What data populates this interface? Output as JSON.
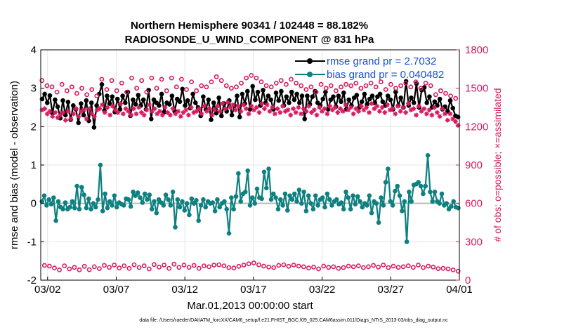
{
  "chart_data": {
    "type": "line",
    "title_line1": "Northern Hemisphere 90341 / 102448 = 88.182%",
    "title_line2": "RADIOSONDE_U_WIND_COMPONENT @ 831 hPa",
    "xlabel": "Mar.01,2013 00:00:00 start",
    "ylabel_left": "rmse and bias (model - observation)",
    "ylabel_right": "# of obs: o=possible; ×=assimilated",
    "footnote": "data file: /Users/raeder/DAI/ATM_forcXX/CAM6_setup/f.e21.FHIST_BGC.f09_025.CAM6assim.011/Diags_NTrS_2013-03/obs_diag_output.nc",
    "x_ticks": [
      "03/02",
      "03/07",
      "03/12",
      "03/17",
      "03/22",
      "03/27",
      "04/01"
    ],
    "x_tick_days": [
      1,
      6,
      11,
      16,
      21,
      26,
      31
    ],
    "xlim": [
      0.5,
      31
    ],
    "ylim_left": [
      -2,
      4
    ],
    "y_ticks_left": [
      "-2",
      "-1",
      "0",
      "1",
      "2",
      "3",
      "4"
    ],
    "ylim_right": [
      0,
      1800
    ],
    "y_ticks_right": [
      "0",
      "300",
      "600",
      "900",
      "1200",
      "1500",
      "1800"
    ],
    "series": [
      {
        "name": "rmse",
        "legend": "rmse grand pr = 2.7032",
        "color": "#000000",
        "axis": "left",
        "values": [
          2.72,
          2.85,
          2.62,
          2.81,
          2.35,
          2.7,
          2.52,
          2.22,
          2.68,
          2.3,
          2.64,
          2.18,
          2.55,
          2.45,
          2.1,
          2.6,
          2.3,
          2.68,
          2.15,
          2.62,
          1.98,
          2.55,
          2.85,
          3.1,
          2.42,
          2.8,
          2.6,
          2.78,
          2.38,
          2.72,
          2.45,
          2.8,
          2.62,
          2.9,
          2.28,
          2.7,
          2.58,
          2.82,
          2.55,
          2.7,
          2.45,
          2.95,
          2.2,
          2.7,
          2.62,
          2.55,
          2.85,
          2.38,
          2.62,
          2.58,
          2.8,
          2.4,
          2.72,
          2.65,
          2.98,
          2.55,
          2.68,
          2.48,
          2.85,
          2.62,
          2.5,
          2.28,
          2.78,
          2.45,
          2.7,
          2.18,
          2.62,
          2.35,
          2.75,
          2.28,
          2.6,
          2.4,
          2.68,
          2.3,
          2.55,
          2.8,
          2.25,
          2.85,
          2.6,
          2.92,
          2.45,
          3.05,
          2.7,
          2.9,
          2.55,
          2.95,
          2.62,
          2.8,
          2.7,
          2.45,
          2.88,
          2.68,
          2.92,
          2.55,
          2.78,
          2.62,
          2.9,
          2.7,
          2.85,
          2.62,
          2.8,
          2.2,
          2.8,
          2.58,
          2.78,
          2.92,
          2.62,
          2.55,
          2.72,
          2.9,
          2.45,
          2.7,
          2.78,
          2.52,
          2.8,
          2.65,
          2.88,
          2.45,
          2.7,
          2.55,
          2.75,
          2.82,
          2.5,
          2.65,
          2.85,
          2.58,
          2.72,
          2.8,
          2.62,
          2.78,
          2.85,
          2.65,
          2.55,
          2.8,
          2.7,
          2.45,
          2.9,
          2.55,
          2.75,
          2.5,
          3.18,
          2.55,
          2.75,
          2.62,
          3.12,
          2.5,
          2.95,
          3.02,
          2.62,
          2.78,
          2.5,
          2.65,
          2.55,
          2.72,
          2.45,
          2.52,
          2.4,
          2.68,
          2.48,
          2.28,
          2.25
        ]
      },
      {
        "name": "bias",
        "legend": "bias grand pr = 0.040482",
        "color": "#0e8080",
        "axis": "left",
        "values": [
          0.05,
          0.2,
          -0.05,
          0.1,
          -0.02,
          0.15,
          -0.45,
          0.05,
          -0.1,
          -0.15,
          0.02,
          -0.15,
          -0.1,
          0.05,
          -0.12,
          0.45,
          -0.15,
          0.42,
          0.22,
          -0.12,
          0.12,
          -0.15,
          0.0,
          -0.1,
          0.1,
          1.0,
          -0.2,
          0.25,
          -0.12,
          0.05,
          -0.05,
          0.2,
          -0.1,
          0.02,
          -0.02,
          -0.05,
          0.12,
          0.1,
          -0.08,
          0.3,
          0.2,
          0.28,
          0.15,
          0.02,
          0.25,
          0.1,
          0.22,
          -0.15,
          0.05,
          -0.25,
          0.1,
          0.02,
          -0.05,
          0.22,
          0.1,
          -0.05,
          0.3,
          -0.62,
          0.1,
          -0.1,
          0.05,
          -0.18,
          0.0,
          -0.3,
          0.12,
          0.0,
          0.08,
          -0.45,
          -0.05,
          0.1,
          -0.1,
          0.05,
          0.0,
          0.02,
          -0.2,
          0.1,
          -0.1,
          0.0,
          0.05,
          -0.15,
          -0.78,
          0.15,
          -0.15,
          0.18,
          0.78,
          0.05,
          0.25,
          0.3,
          0.85,
          -0.05,
          0.15,
          0.0,
          0.38,
          0.15,
          0.12,
          0.82,
          0.4,
          0.9,
          0.1,
          0.25,
          0.15,
          -0.15,
          0.1,
          -0.05,
          0.25,
          -0.18,
          0.2,
          0.1,
          0.25,
          0.05,
          0.35,
          0.0,
          0.3,
          -0.2,
          0.2,
          0.0,
          -0.15,
          0.2,
          -0.05,
          0.1,
          0.15,
          -0.1,
          0.25,
          0.1,
          -0.05,
          0.05,
          0.1,
          -0.02,
          0.02,
          -0.15,
          0.3,
          0.15,
          -0.15,
          0.2,
          -0.02,
          0.18,
          0.05,
          -0.1,
          0.0,
          -0.05,
          0.2,
          -0.25,
          0.05,
          0.0,
          -0.5,
          0.15,
          -0.05,
          0.55,
          0.9,
          0.05,
          -0.05,
          0.32,
          0.45,
          0.2,
          -0.2,
          0.05,
          -1.0,
          0.3,
          0.05,
          0.48,
          0.5,
          0.55,
          0.45,
          0.25,
          0.45,
          1.25,
          0.3,
          0.05,
          0.3,
          0.05,
          0.0,
          0.25,
          -0.05,
          0.0,
          -0.15,
          -0.08,
          0.05,
          -0.1,
          -0.12
        ]
      },
      {
        "name": "possible",
        "color": "#d81b60",
        "axis": "right",
        "marker": "circle",
        "values": [
          1560,
          115,
          1520,
          110,
          1510,
          95,
          1470,
          80,
          1530,
          112,
          1480,
          88,
          1510,
          100,
          1460,
          80,
          1500,
          108,
          1450,
          82,
          1490,
          105,
          1440,
          90,
          1570,
          115,
          1490,
          100,
          1560,
          118,
          1480,
          95,
          1540,
          112,
          1470,
          92,
          1580,
          120,
          1500,
          98,
          1560,
          112,
          1470,
          88,
          1580,
          122,
          1500,
          102,
          1570,
          118,
          1480,
          92,
          1580,
          125,
          1510,
          100,
          1570,
          118,
          1490,
          100,
          1550,
          115,
          1480,
          92,
          1520,
          112,
          1510,
          105,
          1550,
          118,
          1590,
          120,
          1560,
          112,
          1520,
          98,
          1500,
          95,
          1510,
          108,
          1540,
          118,
          1580,
          128,
          1600,
          135,
          1580,
          120,
          1550,
          110,
          1520,
          102,
          1510,
          98,
          1540,
          115,
          1560,
          120,
          1530,
          108,
          1570,
          118,
          1540,
          110,
          1520,
          105,
          1490,
          95,
          1510,
          102,
          1470,
          88,
          1530,
          110,
          1500,
          100,
          1520,
          105,
          1480,
          92,
          1510,
          98,
          1530,
          110,
          1520,
          105,
          1540,
          112,
          1500,
          98,
          1520,
          105,
          1540,
          115,
          1510,
          102,
          1550,
          118,
          1490,
          98,
          1530,
          110,
          1500,
          100,
          1520,
          105,
          1540,
          112,
          1510,
          100,
          1550,
          118,
          1500,
          98,
          1540,
          110,
          1520,
          102,
          1450,
          90,
          1480,
          92,
          1460,
          88,
          1440,
          80,
          1420,
          70
        ]
      },
      {
        "name": "assimilated",
        "color": "#d81b60",
        "axis": "right",
        "marker": "asterisk",
        "values": [
          1330,
          1340,
          1300,
          1320,
          1280,
          1310,
          1270,
          1290,
          1310,
          1250,
          1320,
          1260,
          1300,
          1340,
          1280,
          1320,
          1330,
          1260,
          1340,
          1300,
          1280,
          1330,
          1340,
          1370,
          1310,
          1350,
          1290,
          1360,
          1330,
          1310,
          1380,
          1300,
          1340,
          1320,
          1290,
          1340,
          1300,
          1350,
          1310,
          1290,
          1330,
          1370,
          1320,
          1340,
          1300,
          1320,
          1290,
          1350,
          1310,
          1290,
          1340,
          1300,
          1320,
          1280,
          1310,
          1330,
          1290,
          1350,
          1310,
          1320,
          1340,
          1300,
          1360,
          1320,
          1340,
          1290,
          1330,
          1360,
          1320,
          1380,
          1340,
          1390,
          1350,
          1370,
          1330,
          1360,
          1320,
          1370,
          1340,
          1300,
          1360,
          1330,
          1350,
          1310,
          1380,
          1340,
          1370,
          1320,
          1350,
          1300,
          1340,
          1310,
          1360,
          1320,
          1330,
          1290,
          1340,
          1310,
          1350,
          1300,
          1340,
          1320,
          1360,
          1310,
          1330,
          1290,
          1350,
          1320,
          1340,
          1300,
          1360,
          1330,
          1350,
          1310,
          1340,
          1320,
          1370,
          1330,
          1350,
          1300,
          1340,
          1320,
          1360,
          1330,
          1350,
          1310,
          1380,
          1340,
          1360,
          1320,
          1350,
          1310,
          1370,
          1330,
          1340,
          1300,
          1360,
          1320,
          1350,
          1310,
          1380,
          1330,
          1340,
          1290,
          1360,
          1320,
          1340,
          1300,
          1330,
          1290,
          1350,
          1310,
          1280,
          1340,
          1300,
          1250,
          1300,
          1260,
          1240,
          1210
        ]
      }
    ],
    "legend_position": "top-right",
    "zero_line": true,
    "grid": true
  }
}
